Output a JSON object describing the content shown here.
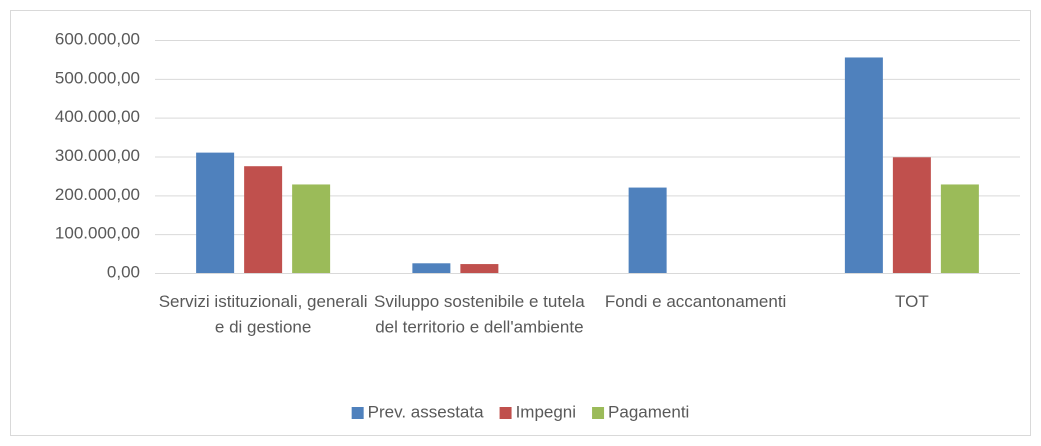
{
  "chart_data": {
    "type": "bar",
    "categories": [
      "Servizi istituzionali, generali e di gestione",
      "Sviluppo sostenibile e tutela del territorio e dell'ambiente",
      "Fondi e accantonamenti",
      "TOT"
    ],
    "series": [
      {
        "name": "Prev. assestata",
        "color": "#4f81bd",
        "values": [
          310000,
          25000,
          220000,
          555000
        ]
      },
      {
        "name": "Impegni",
        "color": "#c0504d",
        "values": [
          275000,
          23000,
          0,
          298000
        ]
      },
      {
        "name": "Pagamenti",
        "color": "#9bbb59",
        "values": [
          228000,
          0,
          0,
          228000
        ]
      }
    ],
    "ylim": [
      0,
      600000
    ],
    "yticks": [
      {
        "value": 0,
        "label": "0,00"
      },
      {
        "value": 100000,
        "label": "100.000,00"
      },
      {
        "value": 200000,
        "label": "200.000,00"
      },
      {
        "value": 300000,
        "label": "300.000,00"
      },
      {
        "value": 400000,
        "label": "400.000,00"
      },
      {
        "value": 500000,
        "label": "500.000,00"
      },
      {
        "value": 600000,
        "label": "600.000,00"
      }
    ],
    "grid": true,
    "legend": "bottom"
  }
}
